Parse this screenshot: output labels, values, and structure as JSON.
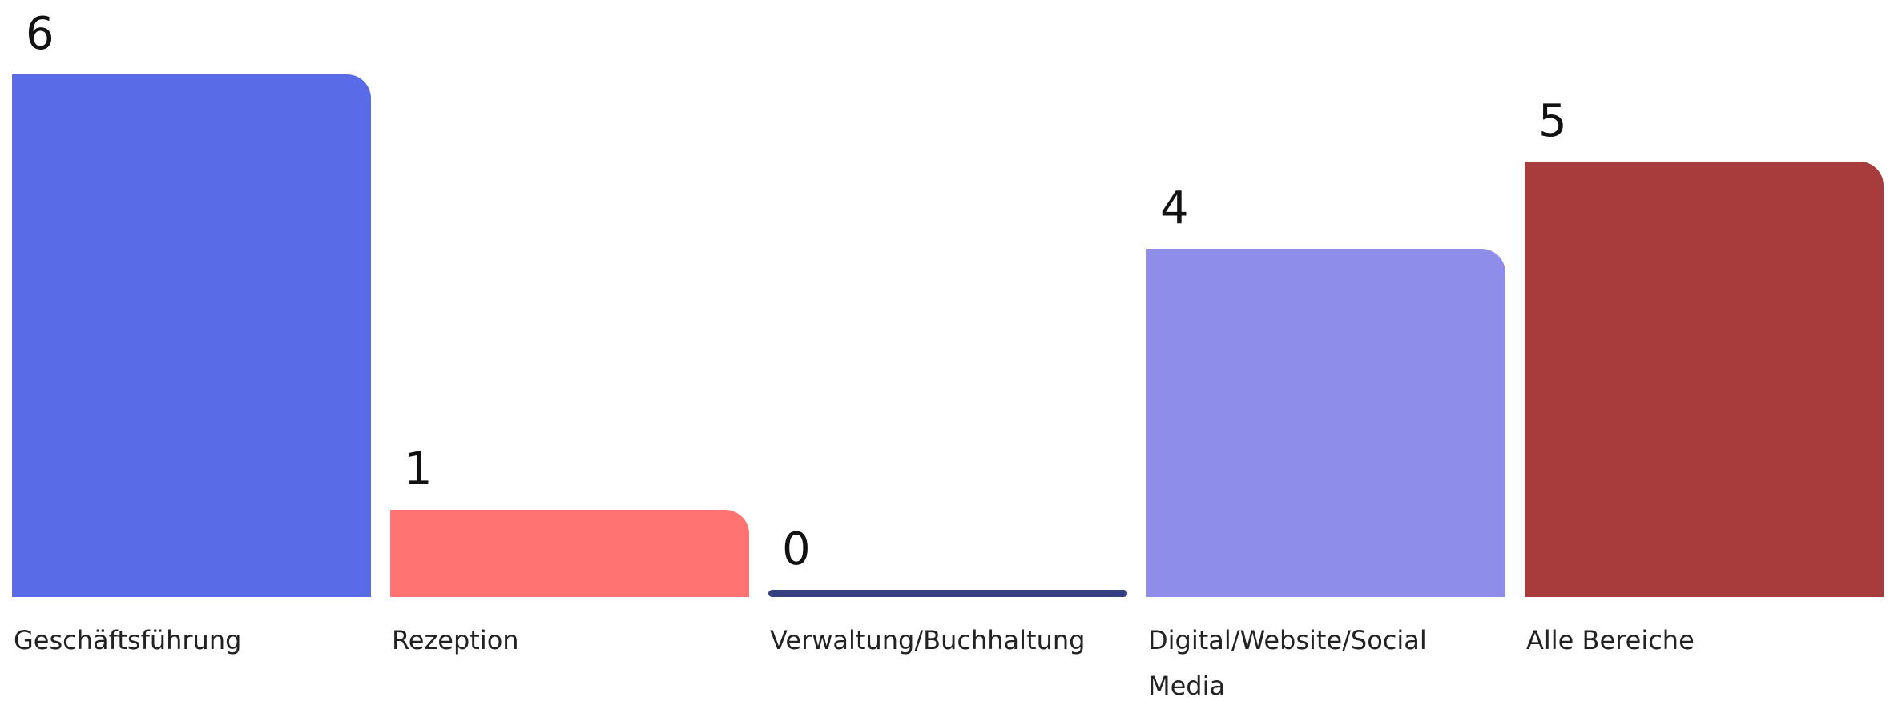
{
  "chart_data": {
    "type": "bar",
    "categories": [
      "Geschäftsführung",
      "Rezeption",
      "Verwaltung/Buchhaltung",
      "Digital/Website/Social Media",
      "Alle Bereiche"
    ],
    "values": [
      6,
      1,
      0,
      4,
      5
    ],
    "colors": [
      "#5a6be8",
      "#ff7373",
      "#363f82",
      "#8e8eea",
      "#a83c3c"
    ]
  }
}
